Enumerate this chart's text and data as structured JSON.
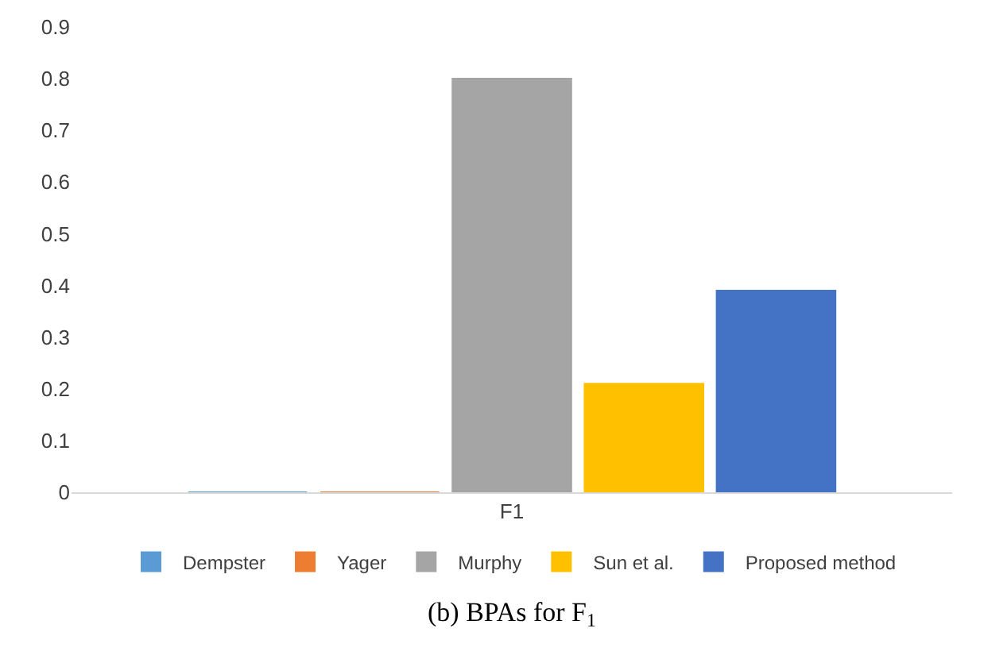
{
  "chart_data": {
    "type": "bar",
    "categories": [
      "F1"
    ],
    "series": [
      {
        "name": "Dempster",
        "color": "#5b9bd5",
        "values": [
          0
        ]
      },
      {
        "name": "Yager",
        "color": "#ed7d31",
        "values": [
          0
        ]
      },
      {
        "name": "Murphy",
        "color": "#a5a5a5",
        "values": [
          0.8
        ]
      },
      {
        "name": "Sun et al.",
        "color": "#ffc000",
        "values": [
          0.21
        ]
      },
      {
        "name": "Proposed method",
        "color": "#4472c4",
        "values": [
          0.39
        ]
      }
    ],
    "ylim": [
      0,
      0.9
    ],
    "yticks": [
      0,
      0.1,
      0.2,
      0.3,
      0.4,
      0.5,
      0.6,
      0.7,
      0.8,
      0.9
    ],
    "grid": false,
    "legend": "bottom",
    "annotations": [
      "(b) BPAs for F$_{1}$"
    ]
  }
}
